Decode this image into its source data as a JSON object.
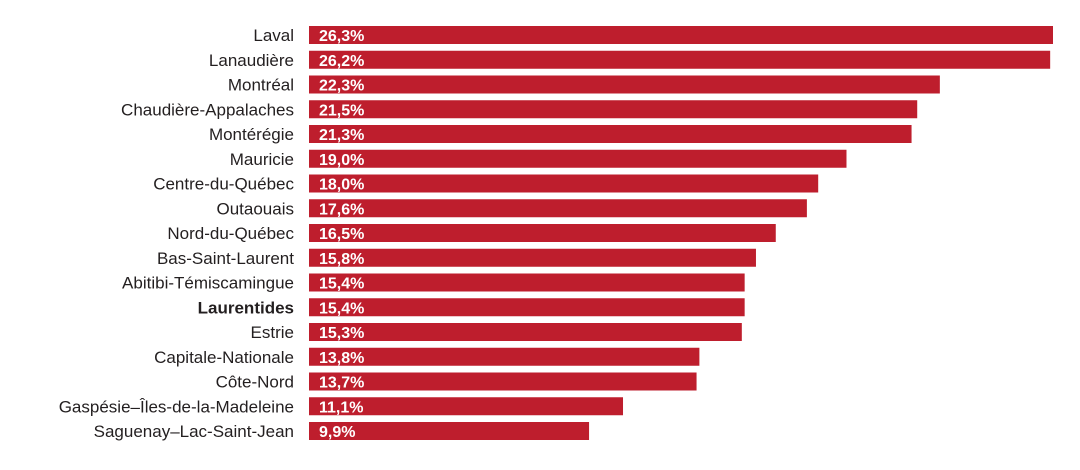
{
  "chart_data": {
    "type": "bar",
    "orientation": "horizontal",
    "title": "",
    "xlabel": "",
    "ylabel": "",
    "xlim": [
      0,
      26.3
    ],
    "grid": false,
    "bar_color": "#be1e2d",
    "highlight": "Laurentides",
    "categories": [
      "Laval",
      "Lanaudière",
      "Montréal",
      "Chaudière-Appalaches",
      "Montérégie",
      "Mauricie",
      "Centre-du-Québec",
      "Outaouais",
      "Nord-du-Québec",
      "Bas-Saint-Laurent",
      "Abitibi-Témiscamingue",
      "Laurentides",
      "Estrie",
      "Capitale-Nationale",
      "Côte-Nord",
      "Gaspésie–Îles-de-la-Madeleine",
      "Saguenay–Lac-Saint-Jean"
    ],
    "values": [
      26.3,
      26.2,
      22.3,
      21.5,
      21.3,
      19.0,
      18.0,
      17.6,
      16.5,
      15.8,
      15.4,
      15.4,
      15.3,
      13.8,
      13.7,
      11.1,
      9.9
    ],
    "labels": [
      "26,3%",
      "26,2%",
      "22,3%",
      "21,5%",
      "21,3%",
      "19,0%",
      "18,0%",
      "17,6%",
      "16,5%",
      "15,8%",
      "15,4%",
      "15,4%",
      "15,3%",
      "13,8%",
      "13,7%",
      "11,1%",
      "9,9%"
    ]
  }
}
